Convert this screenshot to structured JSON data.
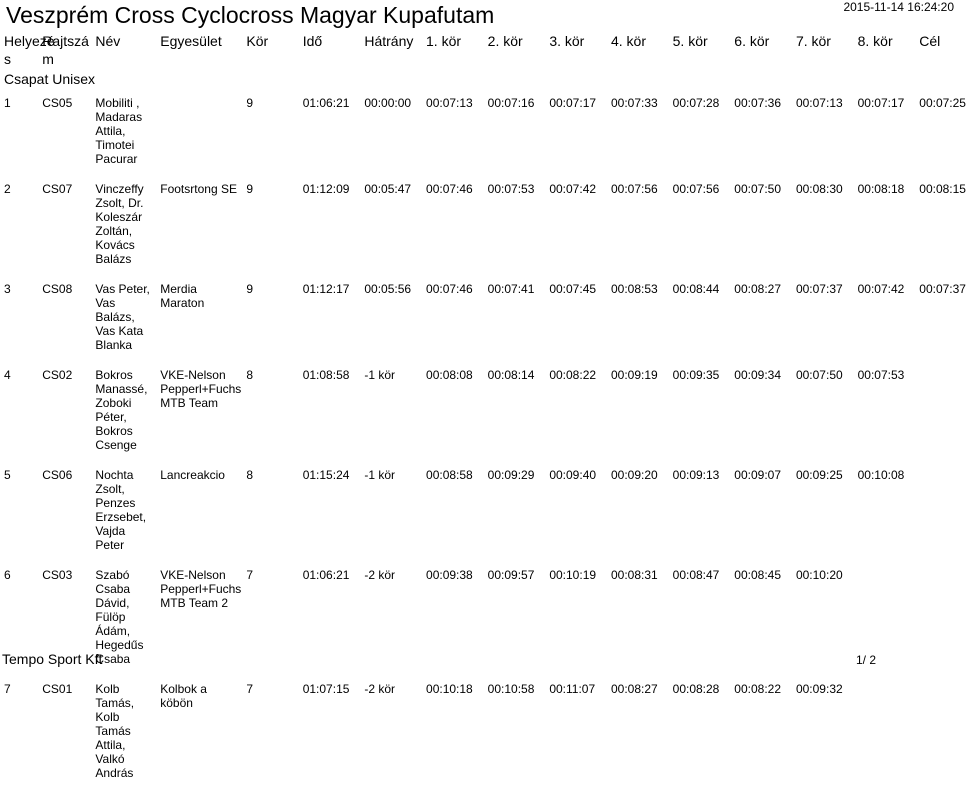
{
  "header": {
    "title": "Veszprém Cross Cyclocross Magyar Kupafutam",
    "timestamp": "2015-11-14 16:24:20"
  },
  "columns": [
    "Helyezé s",
    "Rajtszá m",
    "Név",
    "Egyesület",
    "Kör",
    "Idő",
    "Hátrány",
    "1. kör",
    "2. kör",
    "3. kör",
    "4. kör",
    "5. kör",
    "6. kör",
    "7. kör",
    "8. kör",
    "Cél"
  ],
  "group": "Csapat Unisex",
  "rows": [
    [
      "1",
      "CS05",
      "Mobiliti , Madaras Attila, Timotei Pacurar",
      "",
      "9",
      "01:06:21",
      "00:00:00",
      "00:07:13",
      "00:07:16",
      "00:07:17",
      "00:07:33",
      "00:07:28",
      "00:07:36",
      "00:07:13",
      "00:07:17",
      "00:07:25"
    ],
    [
      "2",
      "CS07",
      "Vinczeffy Zsolt, Dr. Koleszár Zoltán, Kovács Balázs",
      "Footsrtong SE",
      "9",
      "01:12:09",
      "00:05:47",
      "00:07:46",
      "00:07:53",
      "00:07:42",
      "00:07:56",
      "00:07:56",
      "00:07:50",
      "00:08:30",
      "00:08:18",
      "00:08:15"
    ],
    [
      "3",
      "CS08",
      "Vas Peter, Vas Balázs, Vas Kata Blanka",
      "Merdia Maraton",
      "9",
      "01:12:17",
      "00:05:56",
      "00:07:46",
      "00:07:41",
      "00:07:45",
      "00:08:53",
      "00:08:44",
      "00:08:27",
      "00:07:37",
      "00:07:42",
      "00:07:37"
    ],
    [
      "4",
      "CS02",
      "Bokros Manassé, Zoboki Péter, Bokros Csenge",
      "VKE-Nelson Pepperl+Fuchs MTB Team",
      "8",
      "01:08:58",
      "-1 kör",
      "00:08:08",
      "00:08:14",
      "00:08:22",
      "00:09:19",
      "00:09:35",
      "00:09:34",
      "00:07:50",
      "00:07:53",
      ""
    ],
    [
      "5",
      "CS06",
      "Nochta Zsolt, Penzes Erzsebet, Vajda Peter",
      "Lancreakcio",
      "8",
      "01:15:24",
      "-1 kör",
      "00:08:58",
      "00:09:29",
      "00:09:40",
      "00:09:20",
      "00:09:13",
      "00:09:07",
      "00:09:25",
      "00:10:08",
      ""
    ],
    [
      "6",
      "CS03",
      "Szabó Csaba Dávid, Fülöp Ádám, Hegedűs Csaba",
      "VKE-Nelson Pepperl+Fuchs MTB Team 2",
      "7",
      "01:06:21",
      "-2 kör",
      "00:09:38",
      "00:09:57",
      "00:10:19",
      "00:08:31",
      "00:08:47",
      "00:08:45",
      "00:10:20",
      "",
      ""
    ],
    [
      "7",
      "CS01",
      "Kolb Tamás, Kolb Tamás Attila, Valkó András",
      "Kolbok a köbön",
      "7",
      "01:07:15",
      "-2 kör",
      "00:10:18",
      "00:10:58",
      "00:11:07",
      "00:08:27",
      "00:08:28",
      "00:08:22",
      "00:09:32",
      "",
      ""
    ]
  ],
  "footer": {
    "left": "Tempo Sport Kft",
    "right": "1/ 2"
  }
}
